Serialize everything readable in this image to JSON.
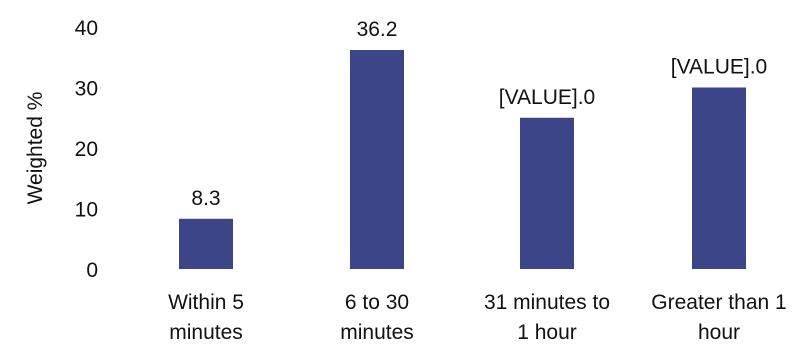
{
  "chart_data": {
    "type": "bar",
    "ylabel": "Weighted %",
    "ylim": [
      0,
      40
    ],
    "yticks": [
      0,
      10,
      20,
      30,
      40
    ],
    "grid": false,
    "bar_color": "#3c4587",
    "categories": [
      [
        "Within 5",
        "minutes"
      ],
      [
        "6 to 30",
        "minutes"
      ],
      [
        "31 minutes to",
        "1 hour"
      ],
      [
        "Greater than 1",
        "hour"
      ]
    ],
    "values": [
      8.3,
      36.2,
      25.0,
      30.0
    ],
    "data_labels": [
      "8.3",
      "36.2",
      "[VALUE].0",
      "[VALUE].0"
    ]
  }
}
